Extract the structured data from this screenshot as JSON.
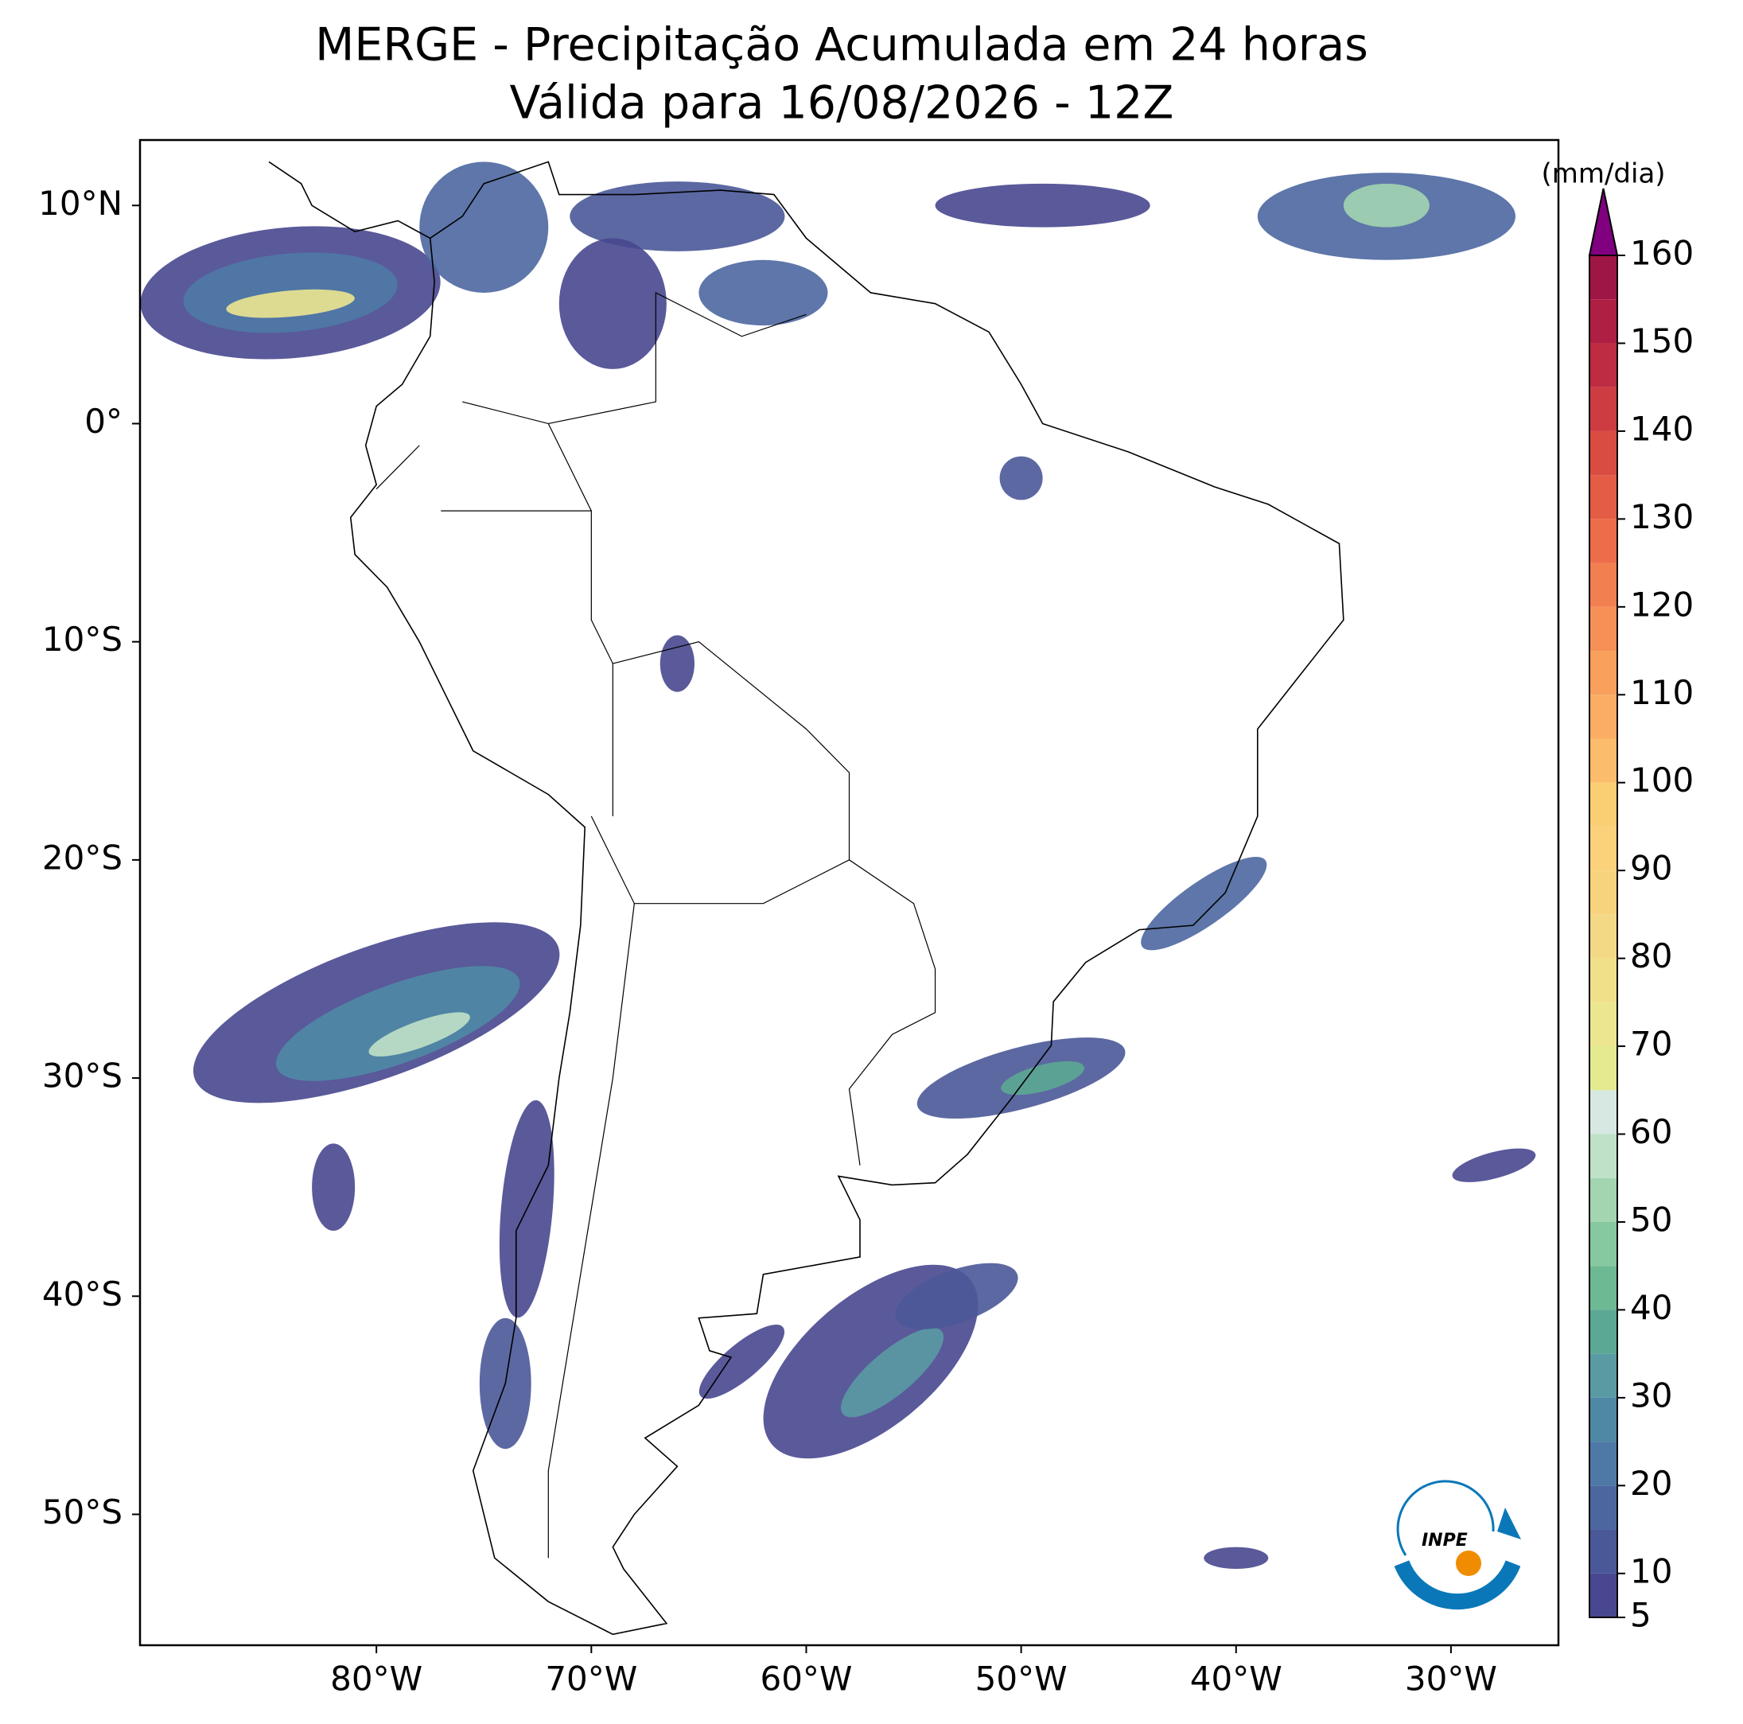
{
  "map": {
    "title": "MERGE - Precipitação Acumulada em 24 horas",
    "subtitle": "Válida para 16/08/2026 - 12Z",
    "lon_lim": [
      -91,
      -25
    ],
    "lat_lim": [
      -56,
      13
    ],
    "lon_ticks": [
      {
        "value": -80,
        "label": "80°W"
      },
      {
        "value": -70,
        "label": "70°W"
      },
      {
        "value": -60,
        "label": "60°W"
      },
      {
        "value": -50,
        "label": "50°W"
      },
      {
        "value": -40,
        "label": "40°W"
      },
      {
        "value": -30,
        "label": "30°W"
      }
    ],
    "lat_ticks": [
      {
        "value": 10,
        "label": "10°N"
      },
      {
        "value": 0,
        "label": "0°"
      },
      {
        "value": -10,
        "label": "10°S"
      },
      {
        "value": -20,
        "label": "20°S"
      },
      {
        "value": -30,
        "label": "30°S"
      },
      {
        "value": -40,
        "label": "40°S"
      },
      {
        "value": -50,
        "label": "50°S"
      }
    ],
    "logo": "INPE"
  },
  "colorbar": {
    "label": "(mm/dia)",
    "levels": [
      5,
      10,
      15,
      20,
      25,
      30,
      35,
      40,
      45,
      50,
      55,
      60,
      65,
      70,
      75,
      80,
      85,
      90,
      95,
      100,
      105,
      110,
      115,
      120,
      125,
      130,
      135,
      140,
      145,
      150,
      155,
      160
    ],
    "colors": [
      "#48478f",
      "#4a5898",
      "#4c67a0",
      "#4e79a6",
      "#4f88a5",
      "#5a9aa3",
      "#5ba894",
      "#6db994",
      "#86c8a0",
      "#a2d5b0",
      "#bfe1c8",
      "#d7e8e2",
      "#e3ea8f",
      "#ece690",
      "#f0e08a",
      "#f3d985",
      "#f8d37d",
      "#fbd27b",
      "#fbce74",
      "#fbbd6b",
      "#faad63",
      "#f9a05c",
      "#f69056",
      "#f27f50",
      "#ed6d4a",
      "#e45c45",
      "#d94c42",
      "#cc3c41",
      "#bd2c41",
      "#ad1f43",
      "#9e1645"
    ],
    "extend_color": "#800080",
    "ticks": [
      5,
      10,
      20,
      30,
      40,
      50,
      60,
      70,
      80,
      90,
      100,
      110,
      120,
      130,
      140,
      150,
      160
    ]
  }
}
